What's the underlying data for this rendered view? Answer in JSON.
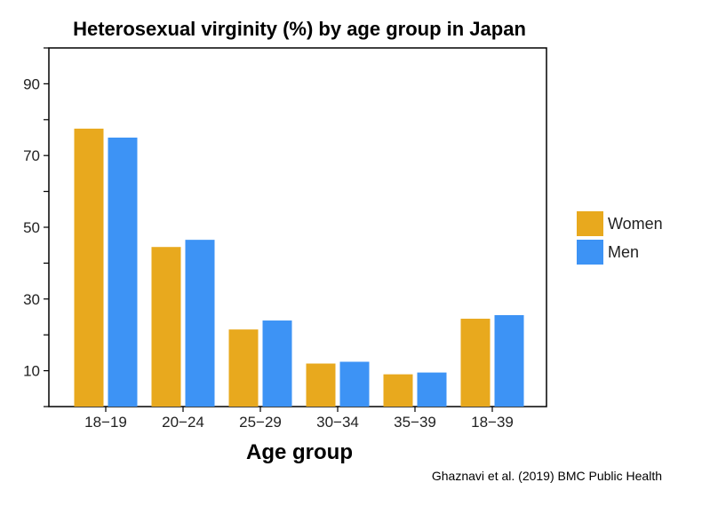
{
  "chart_data": {
    "type": "bar",
    "title": "Heterosexual virginity (%) by age group in Japan",
    "xlabel": "Age group",
    "ylabel": "",
    "categories": [
      "18−19",
      "20−24",
      "25−29",
      "30−34",
      "35−39",
      "18−39"
    ],
    "series": [
      {
        "name": "Women",
        "color": "#E8A91E",
        "values": [
          77.5,
          44.5,
          21.5,
          12.0,
          9.0,
          24.5
        ]
      },
      {
        "name": "Men",
        "color": "#3D93F5",
        "values": [
          75.0,
          46.5,
          24.0,
          12.5,
          9.5,
          25.5
        ]
      }
    ],
    "ylim": [
      0,
      100
    ],
    "yticks": [
      10,
      30,
      50,
      70,
      90
    ],
    "grid": false,
    "legend_position": "right"
  },
  "source_note": "Ghaznavi et al. (2019) BMC Public Health"
}
